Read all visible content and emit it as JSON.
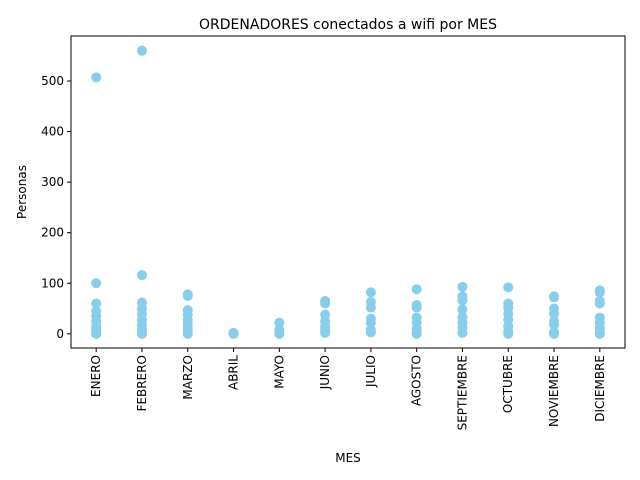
{
  "chart_data": {
    "type": "scatter",
    "title": "ORDENADORES conectados a wifi por MES",
    "xlabel": "MES",
    "ylabel": "Personas",
    "categories": [
      "ENERO",
      "FEBRERO",
      "MARZO",
      "ABRIL",
      "MAYO",
      "JUNIO",
      "JULIO",
      "AGOSTO",
      "SEPTIEMBRE",
      "OCTUBRE",
      "NOVIEMBRE",
      "DICIEMBRE"
    ],
    "values": [
      [
        507,
        100,
        60,
        45,
        35,
        25,
        15,
        8,
        2,
        0
      ],
      [
        560,
        116,
        62,
        50,
        40,
        28,
        18,
        10,
        3,
        0
      ],
      [
        78,
        75,
        47,
        38,
        28,
        20,
        12,
        5,
        0
      ],
      [
        2,
        0
      ],
      [
        22,
        8,
        3,
        0
      ],
      [
        65,
        60,
        38,
        25,
        15,
        8,
        2
      ],
      [
        82,
        63,
        52,
        30,
        22,
        8,
        3
      ],
      [
        88,
        57,
        52,
        32,
        22,
        10,
        3,
        0
      ],
      [
        93,
        74,
        66,
        48,
        33,
        22,
        12,
        2
      ],
      [
        92,
        60,
        52,
        40,
        28,
        15,
        5,
        0
      ],
      [
        74,
        72,
        50,
        40,
        25,
        18,
        3,
        0
      ],
      [
        86,
        82,
        65,
        60,
        32,
        22,
        12,
        3,
        0
      ]
    ],
    "color": "#87ceeb",
    "ylim": [
      -28,
      589
    ],
    "yticks": [
      0,
      100,
      200,
      300,
      400,
      500
    ]
  }
}
